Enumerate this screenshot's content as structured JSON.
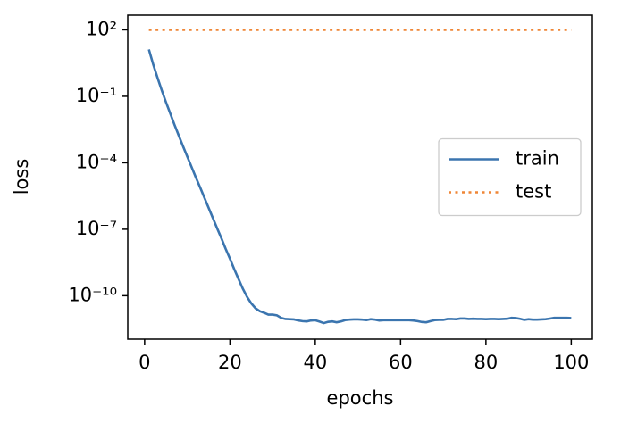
{
  "chart_data": {
    "type": "line",
    "x_label": "epochs",
    "y_label": "loss",
    "x": [
      1,
      2,
      3,
      4,
      5,
      6,
      7,
      8,
      9,
      10,
      11,
      12,
      13,
      14,
      15,
      16,
      17,
      18,
      19,
      20,
      21,
      22,
      23,
      24,
      25,
      26,
      27,
      28,
      29,
      30,
      31,
      32,
      33,
      34,
      35,
      36,
      37,
      38,
      39,
      40,
      41,
      42,
      43,
      44,
      45,
      46,
      47,
      48,
      49,
      50,
      51,
      52,
      53,
      54,
      55,
      56,
      57,
      58,
      59,
      60,
      61,
      62,
      63,
      64,
      65,
      66,
      67,
      68,
      69,
      70,
      71,
      72,
      73,
      74,
      75,
      76,
      77,
      78,
      79,
      80,
      81,
      82,
      83,
      84,
      85,
      86,
      87,
      88,
      89,
      90,
      91,
      92,
      93,
      94,
      95,
      96,
      97,
      98,
      99,
      100
    ],
    "series": [
      {
        "name": "train",
        "color": "#3b75af",
        "dash": "solid",
        "values": [
          13,
          2.8,
          0.71,
          0.19,
          0.055,
          0.017,
          0.0052,
          0.0017,
          0.00056,
          0.00019,
          6.5e-05,
          2.2e-05,
          7.8e-06,
          2.7e-06,
          9.3e-07,
          3.2e-07,
          1.1e-07,
          3.9e-08,
          1.3e-08,
          4.7e-09,
          1.6e-09,
          5.8e-10,
          2.1e-10,
          8.9e-11,
          4.5e-11,
          2.7e-11,
          2e-11,
          1.7e-11,
          1.4e-11,
          1.4e-11,
          1.3e-11,
          1e-11,
          8.9e-12,
          8.7e-12,
          8.5e-12,
          7.6e-12,
          7.1e-12,
          6.9e-12,
          7.6e-12,
          7.8e-12,
          6.8e-12,
          5.8e-12,
          6.6e-12,
          6.9e-12,
          6.3e-12,
          6.9e-12,
          7.9e-12,
          8.3e-12,
          8.5e-12,
          8.5e-12,
          8.3e-12,
          7.9e-12,
          8.7e-12,
          8.3e-12,
          7.6e-12,
          7.8e-12,
          7.8e-12,
          7.8e-12,
          7.9e-12,
          7.8e-12,
          7.9e-12,
          7.8e-12,
          7.6e-12,
          7.1e-12,
          6.5e-12,
          6.3e-12,
          7.1e-12,
          7.9e-12,
          8.1e-12,
          8.1e-12,
          8.9e-12,
          8.9e-12,
          8.7e-12,
          9.3e-12,
          9.3e-12,
          8.9e-12,
          9.1e-12,
          8.9e-12,
          8.9e-12,
          8.7e-12,
          8.9e-12,
          8.9e-12,
          8.7e-12,
          8.9e-12,
          9.1e-12,
          1e-11,
          9.8e-12,
          9.1e-12,
          8.1e-12,
          8.7e-12,
          8.3e-12,
          8.3e-12,
          8.5e-12,
          8.7e-12,
          9.3e-12,
          1e-11,
          1e-11,
          1e-11,
          1e-11,
          9.8e-12
        ]
      },
      {
        "name": "test",
        "color": "#ef8636",
        "dash": "dotted",
        "values": [
          100,
          100,
          100,
          100,
          100,
          100,
          100,
          100,
          100,
          100,
          100,
          100,
          100,
          100,
          100,
          100,
          100,
          100,
          100,
          100,
          100,
          100,
          100,
          100,
          100,
          100,
          100,
          100,
          100,
          100,
          100,
          100,
          100,
          100,
          100,
          100,
          100,
          100,
          100,
          100,
          100,
          100,
          100,
          100,
          100,
          100,
          100,
          100,
          100,
          100,
          100,
          100,
          100,
          100,
          100,
          100,
          100,
          100,
          100,
          100,
          100,
          100,
          100,
          100,
          100,
          100,
          100,
          100,
          100,
          100,
          100,
          100,
          100,
          100,
          100,
          100,
          100,
          100,
          100,
          100,
          100,
          100,
          100,
          100,
          100,
          100,
          100,
          100,
          100,
          100,
          100,
          100,
          100,
          100,
          100,
          100,
          100,
          100,
          100,
          100
        ]
      }
    ],
    "xlim": [
      -3.95,
      104.95
    ],
    "xticks": [
      0,
      20,
      40,
      60,
      80,
      100
    ],
    "yscale": "log",
    "ylim": [
      1.1e-12,
      460
    ],
    "yticks": [
      {
        "value": 1e-10,
        "label": "10⁻¹⁰"
      },
      {
        "value": 1e-07,
        "label": "10⁻⁷"
      },
      {
        "value": 0.0001,
        "label": "10⁻⁴"
      },
      {
        "value": 0.1,
        "label": "10⁻¹"
      },
      {
        "value": 100,
        "label": "10²"
      }
    ],
    "grid": false,
    "legend": "center right"
  }
}
